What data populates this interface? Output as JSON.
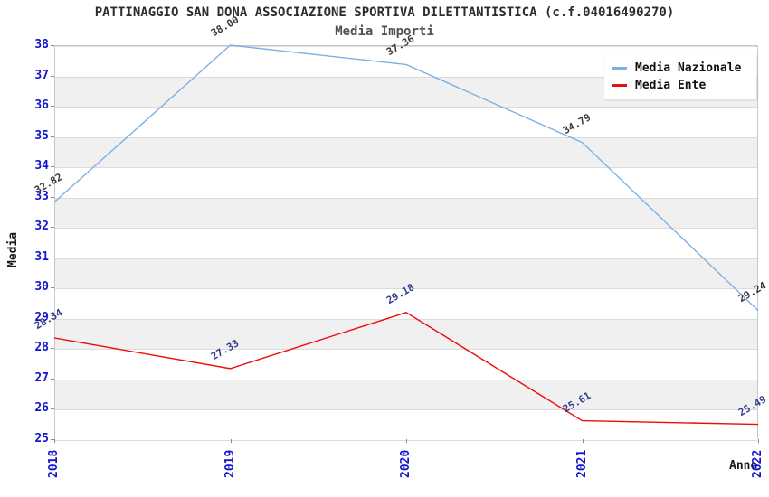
{
  "header": {
    "title": "PATTINAGGIO SAN DONA ASSOCIAZIONE SPORTIVA DILETTANTISTICA (c.f.04016490270)",
    "subtitle": "Media Importi"
  },
  "chart_data": {
    "type": "line",
    "title": "PATTINAGGIO SAN DONA ASSOCIAZIONE SPORTIVA DILETTANTISTICA (c.f.04016490270)",
    "subtitle": "Media Importi",
    "xlabel": "Anno",
    "ylabel": "Media",
    "categories": [
      "2018",
      "2019",
      "2020",
      "2021",
      "2022"
    ],
    "ylim": [
      25,
      38
    ],
    "ytick_step": 1,
    "grid": "horizontal-bands",
    "legend_position": "top-right",
    "series": [
      {
        "name": "Media Nazionale",
        "color": "#7DB0E3",
        "label_color": "#3a3a3a",
        "values": [
          32.82,
          38.0,
          37.36,
          34.79,
          29.24
        ],
        "labels": [
          "32.82",
          "38.00",
          "37.36",
          "34.79",
          "29.24"
        ]
      },
      {
        "name": "Media Ente",
        "color": "#EE0C0C",
        "label_color": "#303E8F",
        "values": [
          28.34,
          27.33,
          29.18,
          25.61,
          25.49
        ],
        "labels": [
          "28.34",
          "27.33",
          "29.18",
          "25.61",
          "25.49"
        ]
      }
    ]
  },
  "colors": {
    "tick_label": "#1515CD",
    "band": "#F0F0F1",
    "gridline": "#DBDBDB",
    "plot_border": "#C8C8C8",
    "tick_mark": "#8A8A8A",
    "title_text": "#2d2d2d",
    "subtitle_text": "#505050",
    "legend_bg": "#FFFFFF"
  }
}
